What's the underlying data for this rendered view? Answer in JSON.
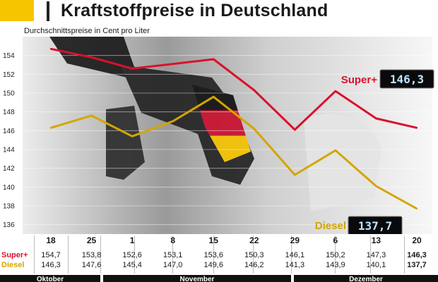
{
  "header": {
    "title": "Kraftstoffpreise in Deutschland",
    "subtitle": "Durchschnittspreise in Cent pro Liter"
  },
  "colors": {
    "super": "#d9122b",
    "diesel": "#d4a500",
    "accent": "#f7c400"
  },
  "chart_data": {
    "type": "line",
    "title": "Kraftstoffpreise in Deutschland",
    "subtitle": "Durchschnittspreise in Cent pro Liter",
    "xlabel": "",
    "ylabel": "",
    "ylim": [
      135,
      156
    ],
    "yticks": [
      136,
      138,
      140,
      142,
      144,
      146,
      148,
      150,
      152,
      154
    ],
    "grid": true,
    "categories": [
      "18",
      "25",
      "1",
      "8",
      "15",
      "22",
      "29",
      "6",
      "13",
      "20"
    ],
    "months": [
      {
        "label": "Oktober",
        "span": [
          "18",
          "25"
        ]
      },
      {
        "label": "November",
        "span": [
          "1",
          "29"
        ]
      },
      {
        "label": "Dezember",
        "span": [
          "6",
          "20"
        ]
      }
    ],
    "series": [
      {
        "name": "Super",
        "name_label": "Super",
        "marker": "+",
        "display_value": "146,3",
        "values": [
          154.7,
          153.8,
          152.6,
          153.1,
          153.6,
          150.3,
          146.1,
          150.2,
          147.3,
          146.3
        ],
        "value_labels": [
          "154,7",
          "153,8",
          "152,6",
          "153,1",
          "153,6",
          "150,3",
          "146,1",
          "150,2",
          "147,3",
          "146,3"
        ]
      },
      {
        "name": "Diesel",
        "name_label": "Diesel",
        "display_value": "137,7",
        "values": [
          146.3,
          147.6,
          145.4,
          147.0,
          149.6,
          146.2,
          141.3,
          143.9,
          140.1,
          137.7
        ],
        "value_labels": [
          "146,3",
          "147,6",
          "145,4",
          "147,0",
          "149,6",
          "146,2",
          "141,3",
          "143,9",
          "140,1",
          "137,7"
        ]
      }
    ]
  }
}
